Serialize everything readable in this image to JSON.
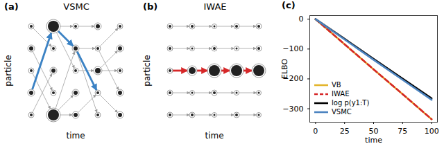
{
  "diagrams": [
    {
      "label": "(a)",
      "title": "VSMC",
      "xlabel": "time",
      "ylabel": "particle"
    },
    {
      "label": "(b)",
      "title": "IWAE",
      "xlabel": "time",
      "ylabel": "particle"
    }
  ],
  "chart_data": {
    "type": "line",
    "title": "(c)",
    "xlabel": "time",
    "ylabel": "ELBO",
    "x": [
      0,
      25,
      50,
      75,
      100
    ],
    "series": [
      {
        "name": "VB",
        "color": "#e3b52d",
        "line_style": "solid",
        "values": [
          0,
          -84,
          -168,
          -251,
          -335
        ]
      },
      {
        "name": "IWAE",
        "color": "#d62728",
        "line_style": "dashed",
        "values": [
          0,
          -84,
          -168,
          -251,
          -335
        ]
      },
      {
        "name": "log p(y1:T)",
        "color": "#000000",
        "line_style": "solid",
        "values": [
          0,
          -66,
          -133,
          -199,
          -265
        ]
      },
      {
        "name": "VSMC",
        "color": "#4c84c0",
        "line_style": "solid",
        "values": [
          0,
          -68,
          -136,
          -203,
          -270
        ]
      }
    ],
    "xlim": [
      -5,
      105
    ],
    "xticks": [
      0,
      25,
      50,
      75,
      100
    ],
    "ylim": [
      -345,
      12
    ],
    "yticks": [
      -300,
      -200,
      -100,
      0
    ],
    "grid": false,
    "legend": "lower left"
  }
}
